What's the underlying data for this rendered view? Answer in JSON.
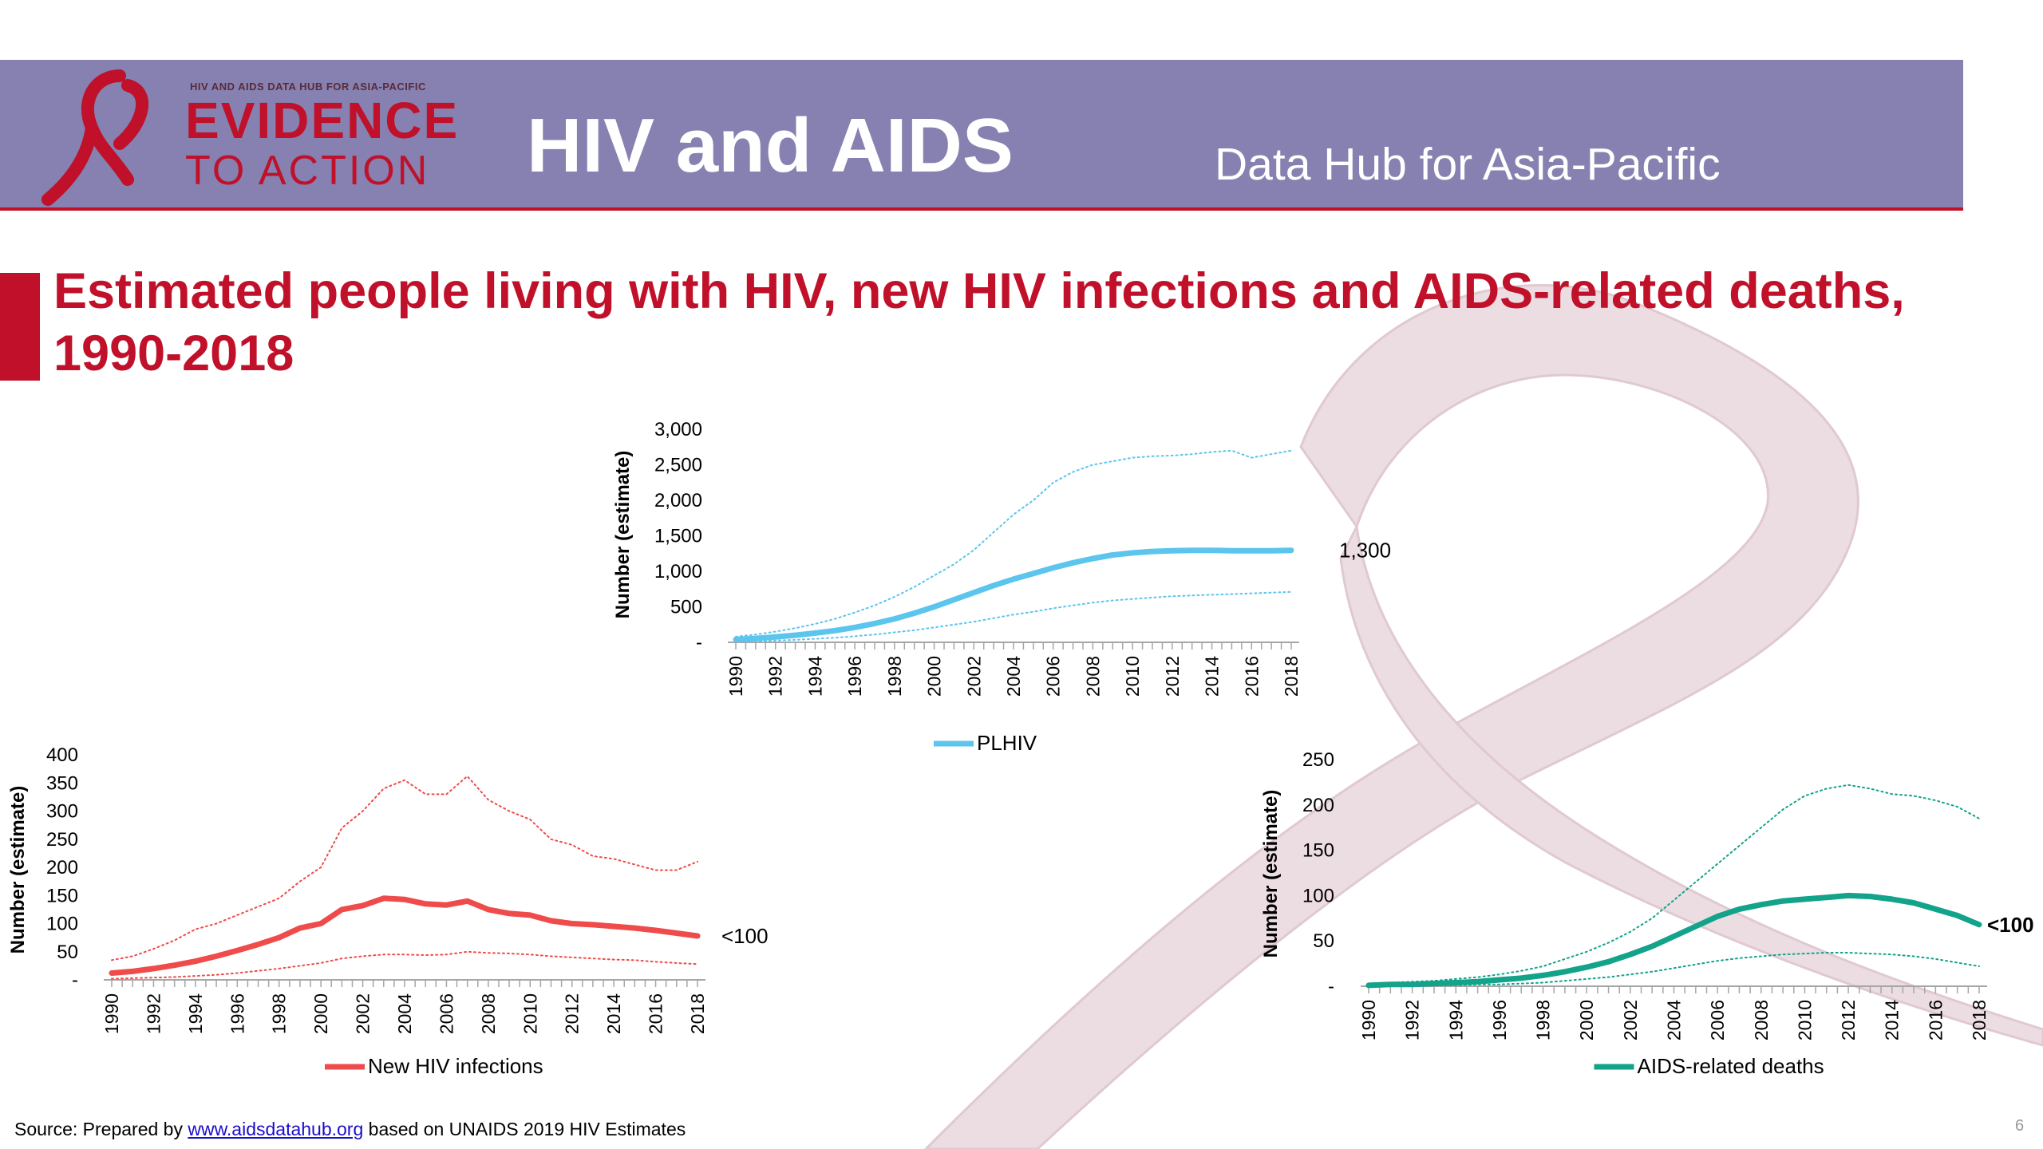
{
  "header": {
    "logo_small": "HIV AND AIDS DATA HUB FOR ASIA-PACIFIC",
    "logo_line1": "EVIDENCE",
    "logo_line2": "TO ACTION",
    "title": "HIV and AIDS",
    "subtitle": "Data Hub for Asia-Pacific"
  },
  "slide_title": "Estimated people living with HIV, new HIV infections and AIDS-related deaths, 1990-2018",
  "source": {
    "prefix": "Source: Prepared by",
    "link": "www.aidsdatahub.org",
    "suffix": " based on UNAIDS 2019 HIV Estimates"
  },
  "page_number": "6",
  "colors": {
    "header": "#8681b0",
    "accent": "#c0102a",
    "plhiv": "#5bc5ed",
    "new_infections": "#ef4b4b",
    "deaths": "#12a38a"
  },
  "chart_data": [
    {
      "id": "plhiv",
      "type": "line",
      "ylabel": "Number (estimate)",
      "ytick_labels": [
        "-",
        "500",
        "1,000",
        "1,500",
        "2,000",
        "2,500",
        "3,000"
      ],
      "xtick_labels": [
        "1990",
        "1992",
        "1994",
        "1996",
        "1998",
        "2000",
        "2002",
        "2004",
        "2006",
        "2008",
        "2010",
        "2012",
        "2014",
        "2016",
        "2018"
      ],
      "ylim": [
        0,
        3000
      ],
      "x": [
        1990,
        1991,
        1992,
        1993,
        1994,
        1995,
        1996,
        1997,
        1998,
        1999,
        2000,
        2001,
        2002,
        2003,
        2004,
        2005,
        2006,
        2007,
        2008,
        2009,
        2010,
        2011,
        2012,
        2013,
        2014,
        2015,
        2016,
        2017,
        2018
      ],
      "series": [
        {
          "name": "PLHIV",
          "style": "solid",
          "values": [
            40,
            55,
            75,
            100,
            130,
            165,
            210,
            265,
            330,
            410,
            500,
            600,
            700,
            800,
            890,
            970,
            1050,
            1120,
            1180,
            1230,
            1260,
            1280,
            1290,
            1295,
            1295,
            1290,
            1290,
            1290,
            1295
          ]
        },
        {
          "role": "upper",
          "style": "dotted",
          "values": [
            80,
            110,
            150,
            200,
            260,
            330,
            420,
            520,
            640,
            780,
            940,
            1100,
            1300,
            1550,
            1800,
            2000,
            2250,
            2400,
            2500,
            2550,
            2600,
            2620,
            2630,
            2650,
            2680,
            2700,
            2600,
            2650,
            2700
          ]
        },
        {
          "role": "lower",
          "style": "dotted",
          "values": [
            10,
            15,
            25,
            35,
            50,
            65,
            85,
            110,
            140,
            170,
            210,
            250,
            290,
            340,
            390,
            430,
            480,
            520,
            560,
            590,
            610,
            630,
            650,
            660,
            670,
            680,
            690,
            700,
            710
          ]
        }
      ],
      "end_label": "1,300",
      "legend": [
        "PLHIV"
      ]
    },
    {
      "id": "new_infections",
      "type": "line",
      "ylabel": "Number (estimate)",
      "ytick_labels": [
        "-",
        "50",
        "100",
        "150",
        "200",
        "250",
        "300",
        "350",
        "400"
      ],
      "xtick_labels": [
        "1990",
        "1992",
        "1994",
        "1996",
        "1998",
        "2000",
        "2002",
        "2004",
        "2006",
        "2008",
        "2010",
        "2012",
        "2014",
        "2016",
        "2018"
      ],
      "ylim": [
        0,
        400
      ],
      "x": [
        1990,
        1991,
        1992,
        1993,
        1994,
        1995,
        1996,
        1997,
        1998,
        1999,
        2000,
        2001,
        2002,
        2003,
        2004,
        2005,
        2006,
        2007,
        2008,
        2009,
        2010,
        2011,
        2012,
        2013,
        2014,
        2015,
        2016,
        2017,
        2018
      ],
      "series": [
        {
          "name": "New HIV infections",
          "style": "solid",
          "values": [
            12,
            15,
            20,
            26,
            33,
            42,
            52,
            63,
            75,
            92,
            100,
            125,
            132,
            145,
            143,
            135,
            133,
            140,
            125,
            118,
            115,
            105,
            100,
            98,
            95,
            92,
            88,
            83,
            78
          ]
        },
        {
          "role": "upper",
          "style": "dotted",
          "values": [
            35,
            42,
            55,
            70,
            90,
            100,
            115,
            130,
            145,
            175,
            200,
            270,
            300,
            340,
            355,
            330,
            330,
            362,
            320,
            300,
            285,
            250,
            240,
            220,
            215,
            205,
            195,
            195,
            210
          ]
        },
        {
          "role": "lower",
          "style": "dotted",
          "values": [
            2,
            3,
            4,
            5,
            7,
            9,
            12,
            16,
            20,
            25,
            30,
            38,
            42,
            45,
            45,
            44,
            45,
            50,
            48,
            47,
            45,
            42,
            40,
            38,
            36,
            35,
            32,
            30,
            28
          ]
        }
      ],
      "end_label": "<100",
      "legend": [
        "New HIV infections"
      ]
    },
    {
      "id": "deaths",
      "type": "line",
      "ylabel": "Number (estimate)",
      "ytick_labels": [
        "-",
        "50",
        "100",
        "150",
        "200",
        "250"
      ],
      "xtick_labels": [
        "1990",
        "1992",
        "1994",
        "1996",
        "1998",
        "2000",
        "2002",
        "2004",
        "2006",
        "2008",
        "2010",
        "2012",
        "2014",
        "2016",
        "2018"
      ],
      "ylim": [
        0,
        250
      ],
      "x": [
        1990,
        1991,
        1992,
        1993,
        1994,
        1995,
        1996,
        1997,
        1998,
        1999,
        2000,
        2001,
        2002,
        2003,
        2004,
        2005,
        2006,
        2007,
        2008,
        2009,
        2010,
        2011,
        2012,
        2013,
        2014,
        2015,
        2016,
        2017,
        2018
      ],
      "series": [
        {
          "name": "AIDS-related deaths",
          "style": "solid",
          "values": [
            1,
            2,
            2,
            3,
            4,
            5,
            7,
            9,
            12,
            16,
            21,
            27,
            35,
            44,
            55,
            66,
            77,
            85,
            90,
            94,
            96,
            98,
            100,
            99,
            96,
            92,
            85,
            78,
            68
          ]
        },
        {
          "role": "upper",
          "style": "dotted",
          "values": [
            3,
            4,
            5,
            6,
            8,
            10,
            13,
            17,
            22,
            30,
            38,
            48,
            60,
            75,
            95,
            115,
            135,
            155,
            175,
            195,
            210,
            218,
            222,
            218,
            212,
            210,
            205,
            198,
            185
          ]
        },
        {
          "role": "lower",
          "style": "dotted",
          "values": [
            0,
            0,
            1,
            1,
            1,
            2,
            2,
            3,
            4,
            6,
            8,
            10,
            13,
            16,
            20,
            24,
            28,
            31,
            33,
            35,
            36,
            37,
            37,
            36,
            35,
            33,
            30,
            26,
            22
          ]
        }
      ],
      "end_label": "<100",
      "legend": [
        "AIDS-related deaths"
      ]
    }
  ]
}
